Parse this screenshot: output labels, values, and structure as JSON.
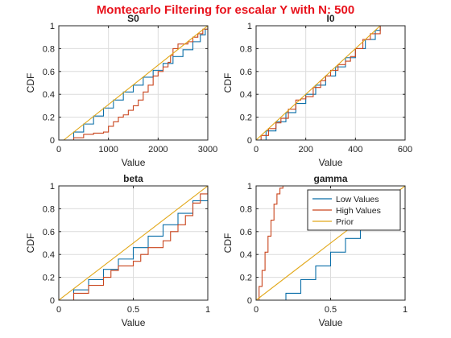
{
  "figure": {
    "suptitle": "Montecarlo Filtering for escalar Y with N: 500"
  },
  "colors": {
    "low": "#0a6ea8",
    "high": "#c9441c",
    "prior": "#e2a81a"
  },
  "chart_data": [
    {
      "type": "line",
      "title": "S0",
      "xlabel": "Value",
      "ylabel": "CDF",
      "xlim": [
        0,
        3000
      ],
      "ylim": [
        0,
        1
      ],
      "xticks": [
        0,
        1000,
        2000,
        3000
      ],
      "yticks": [
        0,
        0.2,
        0.4,
        0.6,
        0.8,
        1
      ],
      "xtick_labels": [
        "0",
        "1000",
        "2000",
        "3000"
      ],
      "ytick_labels": [
        "0",
        "0.2",
        "0.4",
        "0.6",
        "0.8",
        "1"
      ],
      "grid": true,
      "series": [
        {
          "key": "low",
          "step": true,
          "x": [
            100,
            300,
            500,
            700,
            900,
            1100,
            1300,
            1500,
            1700,
            1900,
            2100,
            2300,
            2500,
            2700,
            2850,
            2950,
            3000
          ],
          "y": [
            0,
            0.07,
            0.14,
            0.21,
            0.28,
            0.35,
            0.42,
            0.48,
            0.55,
            0.61,
            0.67,
            0.73,
            0.79,
            0.86,
            0.92,
            0.97,
            1
          ]
        },
        {
          "key": "high",
          "step": true,
          "x": [
            100,
            300,
            500,
            700,
            900,
            1000,
            1100,
            1200,
            1300,
            1400,
            1500,
            1600,
            1700,
            1800,
            1900,
            2000,
            2100,
            2200,
            2250,
            2300,
            2400,
            2500,
            2600,
            2700,
            2800,
            2900,
            3000
          ],
          "y": [
            0,
            0.02,
            0.05,
            0.06,
            0.07,
            0.12,
            0.16,
            0.2,
            0.22,
            0.26,
            0.3,
            0.35,
            0.42,
            0.48,
            0.56,
            0.6,
            0.64,
            0.68,
            0.74,
            0.8,
            0.84,
            0.84,
            0.86,
            0.9,
            0.93,
            0.97,
            1
          ]
        },
        {
          "key": "prior",
          "step": false,
          "x": [
            100,
            3000
          ],
          "y": [
            0,
            1
          ]
        }
      ]
    },
    {
      "type": "line",
      "title": "I0",
      "xlabel": "Value",
      "ylabel": "CDF",
      "xlim": [
        0,
        600
      ],
      "ylim": [
        0,
        1
      ],
      "xticks": [
        0,
        200,
        400,
        600
      ],
      "yticks": [
        0,
        0.2,
        0.4,
        0.6,
        0.8,
        1
      ],
      "xtick_labels": [
        "0",
        "200",
        "400",
        "600"
      ],
      "ytick_labels": [
        "0",
        "0.2",
        "0.4",
        "0.6",
        "0.8",
        "1"
      ],
      "grid": true,
      "series": [
        {
          "key": "low",
          "step": true,
          "x": [
            0,
            40,
            80,
            120,
            160,
            200,
            240,
            280,
            320,
            360,
            400,
            440,
            480,
            500
          ],
          "y": [
            0,
            0.08,
            0.16,
            0.24,
            0.32,
            0.4,
            0.48,
            0.56,
            0.64,
            0.72,
            0.8,
            0.88,
            0.96,
            1
          ]
        },
        {
          "key": "high",
          "step": true,
          "x": [
            0,
            20,
            50,
            80,
            100,
            130,
            160,
            180,
            200,
            230,
            260,
            280,
            300,
            330,
            360,
            380,
            400,
            430,
            460,
            500
          ],
          "y": [
            0,
            0.04,
            0.1,
            0.15,
            0.19,
            0.27,
            0.35,
            0.36,
            0.38,
            0.46,
            0.52,
            0.56,
            0.61,
            0.66,
            0.69,
            0.73,
            0.8,
            0.88,
            0.93,
            1
          ]
        },
        {
          "key": "prior",
          "step": false,
          "x": [
            0,
            500
          ],
          "y": [
            0,
            1
          ]
        }
      ]
    },
    {
      "type": "line",
      "title": "beta",
      "xlabel": "Value",
      "ylabel": "CDF",
      "xlim": [
        0,
        1
      ],
      "ylim": [
        0,
        1
      ],
      "xticks": [
        0,
        0.5,
        1
      ],
      "yticks": [
        0,
        0.2,
        0.4,
        0.6,
        0.8,
        1
      ],
      "xtick_labels": [
        "0",
        "0.5",
        "1"
      ],
      "ytick_labels": [
        "0",
        "0.2",
        "0.4",
        "0.6",
        "0.8",
        "1"
      ],
      "grid": true,
      "series": [
        {
          "key": "low",
          "step": true,
          "x": [
            0,
            0.1,
            0.2,
            0.3,
            0.4,
            0.5,
            0.6,
            0.7,
            0.8,
            0.9,
            1
          ],
          "y": [
            0,
            0.09,
            0.18,
            0.27,
            0.36,
            0.46,
            0.56,
            0.66,
            0.76,
            0.87,
            1
          ]
        },
        {
          "key": "high",
          "step": true,
          "x": [
            0.05,
            0.1,
            0.2,
            0.3,
            0.35,
            0.4,
            0.5,
            0.55,
            0.6,
            0.7,
            0.75,
            0.8,
            0.85,
            0.9,
            0.95,
            1
          ],
          "y": [
            0,
            0.06,
            0.13,
            0.2,
            0.26,
            0.3,
            0.34,
            0.4,
            0.46,
            0.52,
            0.6,
            0.66,
            0.74,
            0.85,
            0.93,
            1
          ]
        },
        {
          "key": "prior",
          "step": false,
          "x": [
            0,
            1
          ],
          "y": [
            0,
            1
          ]
        }
      ]
    },
    {
      "type": "line",
      "title": "gamma",
      "xlabel": "Value",
      "ylabel": "CDF",
      "xlim": [
        0,
        1
      ],
      "ylim": [
        0,
        1
      ],
      "xticks": [
        0,
        0.5,
        1
      ],
      "yticks": [
        0,
        0.2,
        0.4,
        0.6,
        0.8,
        1
      ],
      "xtick_labels": [
        "0",
        "0.5",
        "1"
      ],
      "ytick_labels": [
        "0",
        "0.2",
        "0.4",
        "0.6",
        "0.8",
        "1"
      ],
      "grid": true,
      "legend": {
        "position": "top-right",
        "entries": [
          {
            "key": "low",
            "label": "Low Values"
          },
          {
            "key": "high",
            "label": "High Values"
          },
          {
            "key": "prior",
            "label": "Prior"
          }
        ]
      },
      "series": [
        {
          "key": "low",
          "step": true,
          "x": [
            0.12,
            0.2,
            0.3,
            0.4,
            0.5,
            0.6,
            0.7,
            0.75
          ],
          "y": [
            0,
            0.06,
            0.18,
            0.3,
            0.42,
            0.54,
            0.66,
            0.72
          ]
        },
        {
          "key": "high",
          "step": true,
          "x": [
            0,
            0.02,
            0.04,
            0.06,
            0.08,
            0.1,
            0.12,
            0.14,
            0.16,
            0.18
          ],
          "y": [
            0,
            0.12,
            0.26,
            0.42,
            0.56,
            0.7,
            0.84,
            0.93,
            0.98,
            1
          ]
        },
        {
          "key": "prior",
          "step": false,
          "x": [
            0,
            1
          ],
          "y": [
            0,
            1
          ]
        }
      ]
    }
  ]
}
